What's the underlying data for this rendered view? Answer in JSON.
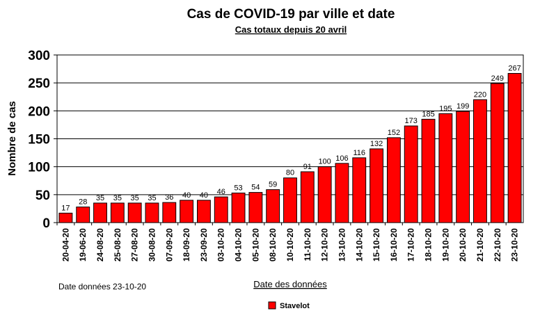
{
  "chart_data": {
    "type": "bar",
    "title": "Cas de COVID-19 par ville et date",
    "subtitle": "Cas totaux depuis 20 avril",
    "xlabel": "Date des données",
    "ylabel": "Nombre de cas",
    "ylim": [
      0,
      300
    ],
    "yticks": [
      0,
      50,
      100,
      150,
      200,
      250,
      300
    ],
    "grid": true,
    "legend_position": "bottom-center",
    "note": "Date données  23-10-20",
    "categories": [
      "20-04-20",
      "19-06-20",
      "24-08-20",
      "25-08-20",
      "27-08-20",
      "30-08-20",
      "07-09-20",
      "18-09-20",
      "23-09-20",
      "03-10-20",
      "04-10-20",
      "05-10-20",
      "08-10-20",
      "10-10-20",
      "11-10-20",
      "12-10-20",
      "13-10-20",
      "14-10-20",
      "15-10-20",
      "16-10-20",
      "17-10-20",
      "18-10-20",
      "19-10-20",
      "20-10-20",
      "21-10-20",
      "22-10-20",
      "23-10-20"
    ],
    "series": [
      {
        "name": "Stavelot",
        "color": "#ff0000",
        "values": [
          17,
          28,
          35,
          35,
          35,
          35,
          36,
          40,
          40,
          46,
          53,
          54,
          59,
          80,
          91,
          100,
          106,
          116,
          132,
          152,
          173,
          185,
          195,
          199,
          220,
          249,
          267
        ]
      }
    ]
  }
}
